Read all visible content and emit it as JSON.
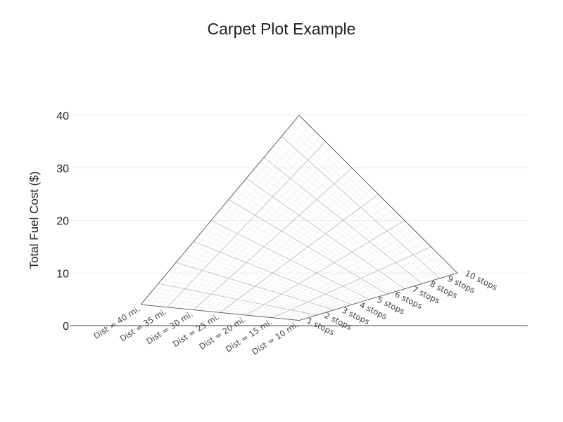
{
  "chart_data": {
    "type": "carpet",
    "title": "Carpet Plot Example",
    "ylabel": "Total Fuel Cost ($)",
    "ylim": [
      0,
      40
    ],
    "yticks": [
      "0",
      "10",
      "20",
      "30",
      "40"
    ],
    "grid": true,
    "a_axis": {
      "values": [
        10,
        15,
        20,
        25,
        30,
        35,
        40
      ],
      "labels": [
        "Dist = 10 mi.",
        "Dist = 15 mi.",
        "Dist = 20 mi.",
        "Dist = 25 mi.",
        "Dist = 30 mi.",
        "Dist = 35 mi.",
        "Dist = 40 mi."
      ]
    },
    "b_axis": {
      "values": [
        1,
        2,
        3,
        4,
        5,
        6,
        7,
        8,
        9,
        10
      ],
      "labels": [
        "1 stops",
        "2 stops",
        "3 stops",
        "4 stops",
        "5 stops",
        "6 stops",
        "7 stops",
        "8 stops",
        "9 stops",
        "10 stops"
      ]
    },
    "corner_values": [
      {
        "dist": 10,
        "stops": 1,
        "cost": 1
      },
      {
        "dist": 40,
        "stops": 1,
        "cost": 4
      },
      {
        "dist": 10,
        "stops": 10,
        "cost": 10
      },
      {
        "dist": 40,
        "stops": 10,
        "cost": 40
      }
    ]
  }
}
